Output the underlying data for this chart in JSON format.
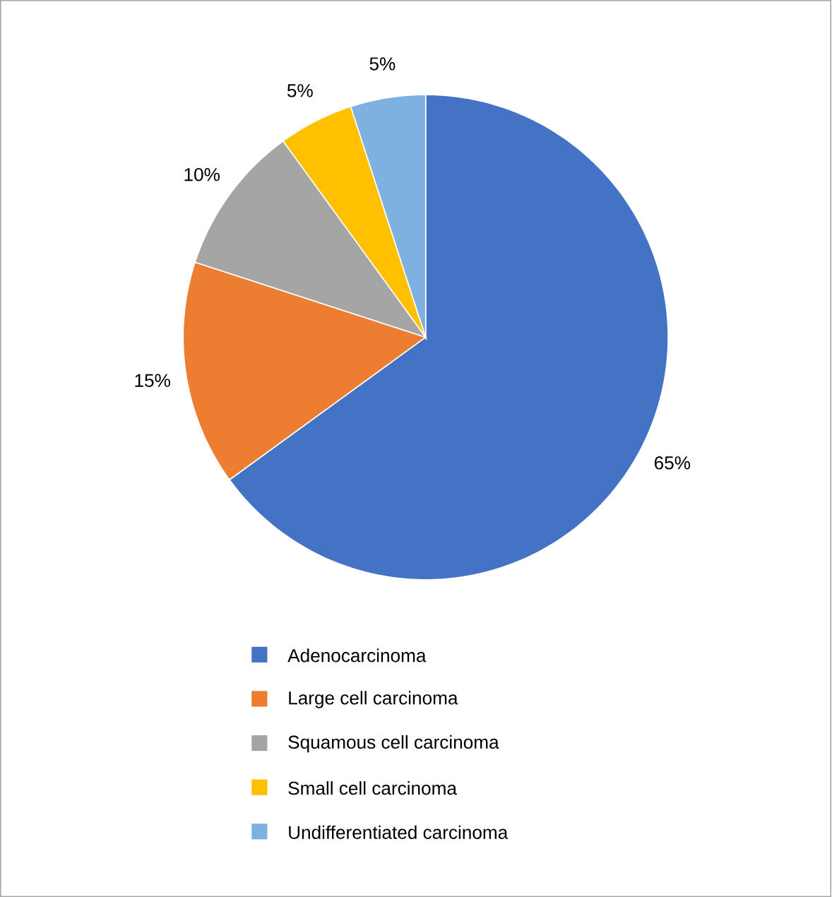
{
  "chart_data": {
    "type": "pie",
    "categories": [
      "Adenocarcinoma",
      "Large cell carcinoma",
      "Squamous cell carcinoma",
      "Small cell carcinoma",
      "Undifferentiated carcinoma"
    ],
    "values": [
      65,
      15,
      10,
      5,
      5
    ],
    "colors": [
      "#4472c4",
      "#ed7d31",
      "#a5a5a5",
      "#ffc000",
      "#7eb0e0"
    ],
    "value_labels": [
      "65%",
      "15%",
      "10%",
      "5%",
      "5%"
    ],
    "legend": "bottom"
  }
}
